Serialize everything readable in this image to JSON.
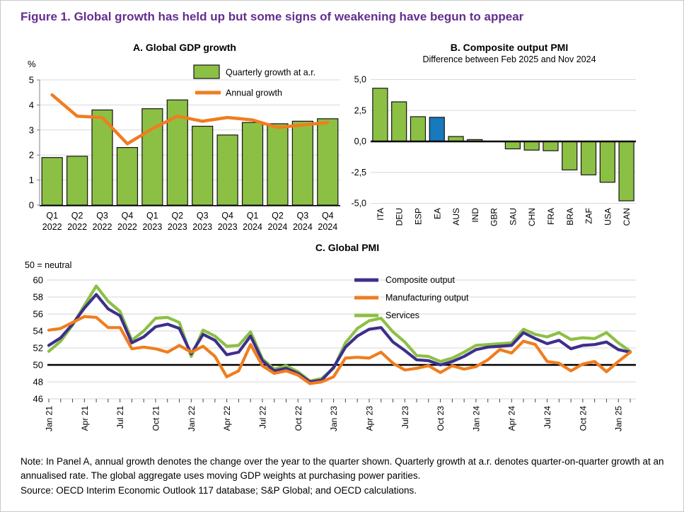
{
  "figure": {
    "title": "Figure 1. Global growth has held up but some signs of weakening have begun to appear",
    "note": "Note: In Panel A, annual growth denotes the change over the year to the quarter shown. Quarterly growth at a.r. denotes quarter-on-quarter growth at an annualised rate. The global aggregate uses moving GDP weights at purchasing power parities.",
    "source": "Source: OECD Interim Economic Outlook 117 database; S&P Global; and OECD calculations."
  },
  "colors": {
    "title_purple": "#642d91",
    "bar_green": "#8cc044",
    "line_orange": "#f07d1f",
    "highlight_blue": "#1779be",
    "composite_purple": "#3d2f8c",
    "gridline_gray": "#d6d6d6",
    "axis_black": "#000000"
  },
  "chart_data": [
    {
      "id": "panel_a",
      "type": "bar",
      "title": "A. Global GDP growth",
      "unit_label": "%",
      "ylim": [
        0,
        5
      ],
      "yticks": [
        0,
        1,
        2,
        3,
        4,
        5
      ],
      "grid": "horizontal",
      "legend_position": "top-right",
      "categories_line1": [
        "Q1",
        "Q2",
        "Q3",
        "Q4",
        "Q1",
        "Q2",
        "Q3",
        "Q4",
        "Q1",
        "Q2",
        "Q3",
        "Q4"
      ],
      "categories_line2": [
        "2022",
        "2022",
        "2022",
        "2022",
        "2023",
        "2023",
        "2023",
        "2023",
        "2024",
        "2024",
        "2024",
        "2024"
      ],
      "series": [
        {
          "name": "Quarterly growth at a.r.",
          "type": "bar",
          "color": "#8cc044",
          "values": [
            1.9,
            1.95,
            3.8,
            2.3,
            3.85,
            4.2,
            3.15,
            2.8,
            3.3,
            3.25,
            3.35,
            3.45
          ]
        },
        {
          "name": "Annual growth",
          "type": "line",
          "color": "#f07d1f",
          "values": [
            4.4,
            3.55,
            3.5,
            2.45,
            3.05,
            3.55,
            3.35,
            3.5,
            3.4,
            3.1,
            3.2,
            3.3
          ]
        }
      ]
    },
    {
      "id": "panel_b",
      "type": "bar",
      "title": "B. Composite output PMI",
      "subtitle": "Difference between Feb 2025 and Nov 2024",
      "ylim": [
        -5,
        5
      ],
      "grid": "horizontal",
      "yticks": [
        {
          "value": 5,
          "label": "5,0"
        },
        {
          "value": 2.5,
          "label": "2,5"
        },
        {
          "value": 0,
          "label": "0,0"
        },
        {
          "value": -2.5,
          "label": "-2,5"
        },
        {
          "value": -5,
          "label": "-5,0"
        }
      ],
      "categories": [
        "ITA",
        "DEU",
        "ESP",
        "EA",
        "AUS",
        "IND",
        "GBR",
        "SAU",
        "CHN",
        "FRA",
        "BRA",
        "ZAF",
        "USA",
        "CAN"
      ],
      "values": [
        4.3,
        3.2,
        2.0,
        1.95,
        0.4,
        0.15,
        0.0,
        -0.6,
        -0.7,
        -0.75,
        -2.3,
        -2.7,
        -3.3,
        -4.8
      ],
      "bar_color": "#8cc044",
      "highlight_category": "EA",
      "highlight_color": "#1779be"
    },
    {
      "id": "panel_c",
      "type": "line",
      "title": "C. Global PMI",
      "annotation": "50 = neutral",
      "ylim": [
        46,
        60
      ],
      "yticks": [
        46,
        48,
        50,
        52,
        54,
        56,
        58,
        60
      ],
      "baseline": 50,
      "grid": "horizontal",
      "legend_position": "top-center",
      "n_points": 50,
      "x_start": "Jan 21",
      "x_end": "Feb 25",
      "x_label_every": 3,
      "x_labels": [
        "Jan 21",
        "Apr 21",
        "Jul 21",
        "Oct 21",
        "Jan 22",
        "Apr 22",
        "Jul 22",
        "Oct 22",
        "Jan 23",
        "Apr 23",
        "Jul 23",
        "Oct 23",
        "Jan 24",
        "Apr 24",
        "Jul 24",
        "Oct 24",
        "Jan 25"
      ],
      "series": [
        {
          "name": "Composite output",
          "color": "#3d2f8c",
          "values": [
            52.3,
            53.2,
            54.8,
            56.7,
            58.3,
            56.6,
            55.8,
            52.6,
            53.3,
            54.5,
            54.8,
            54.3,
            51.3,
            53.6,
            52.9,
            51.2,
            51.5,
            53.4,
            50.5,
            49.3,
            49.6,
            49.0,
            48.0,
            48.2,
            49.7,
            52.1,
            53.4,
            54.2,
            54.4,
            52.7,
            51.7,
            50.6,
            50.5,
            50.0,
            50.4,
            51.0,
            51.8,
            52.1,
            52.2,
            52.3,
            53.8,
            53.1,
            52.5,
            52.9,
            51.9,
            52.3,
            52.4,
            52.7,
            51.8,
            51.5
          ]
        },
        {
          "name": "Manufacturing output",
          "color": "#f07d1f",
          "values": [
            54.1,
            54.3,
            55.0,
            55.7,
            55.6,
            54.4,
            54.4,
            51.9,
            52.1,
            51.9,
            51.5,
            52.3,
            51.5,
            52.2,
            51.0,
            48.6,
            49.3,
            52.4,
            49.9,
            49.0,
            49.3,
            48.8,
            47.8,
            48.0,
            48.6,
            50.8,
            50.9,
            50.8,
            51.5,
            50.2,
            49.4,
            49.6,
            49.9,
            49.1,
            49.9,
            49.5,
            49.8,
            50.6,
            51.8,
            51.4,
            52.8,
            52.4,
            50.4,
            50.2,
            49.3,
            50.1,
            50.4,
            49.2,
            50.4,
            51.5
          ]
        },
        {
          "name": "Services",
          "color": "#8cc044",
          "values": [
            51.6,
            52.8,
            54.7,
            57.0,
            59.3,
            57.5,
            56.3,
            52.9,
            54.0,
            55.5,
            55.6,
            55.0,
            51.0,
            54.1,
            53.4,
            52.2,
            52.3,
            53.9,
            50.7,
            49.5,
            49.9,
            49.2,
            48.1,
            48.4,
            49.6,
            52.6,
            54.3,
            55.2,
            55.5,
            53.9,
            52.7,
            51.1,
            51.0,
            50.4,
            50.8,
            51.5,
            52.3,
            52.4,
            52.5,
            52.6,
            54.2,
            53.6,
            53.3,
            53.8,
            53.0,
            53.2,
            53.1,
            53.8,
            52.6,
            51.6
          ]
        }
      ]
    }
  ]
}
